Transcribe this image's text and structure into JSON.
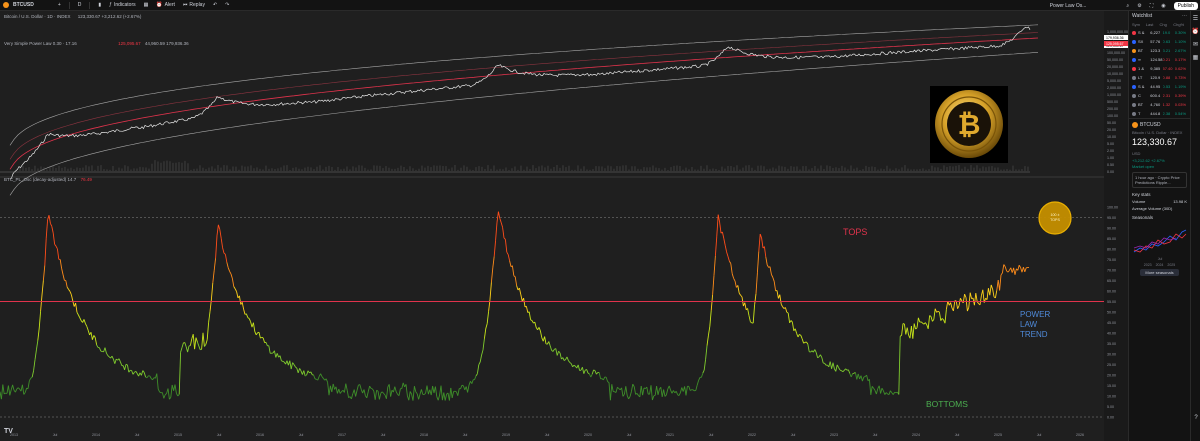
{
  "topbar": {
    "symbol": "BTCUSD",
    "interval": "D",
    "indicators_label": "Indicators",
    "alert_label": "Alert",
    "replay_label": "Replay",
    "layout_name": "Power Law Os...",
    "publish_label": "Publish"
  },
  "legend": {
    "main": "Bitcoin / U.S. Dollar · 1D · INDEX",
    "main_values": "123,330.67 +3,212.62 (+2.67%)",
    "power_law": "Very Simple Power Law 0.30 · 17.16",
    "power_law_val1": "125,095.67",
    "power_law_val2": "44,960.59  179,936.36",
    "oscillator": "BTC_PL_Osc (decay-adjusted) 14.7",
    "oscillator_val": "76.49"
  },
  "price_axis": [
    "1,000,000.00",
    "500,000.00",
    "200,000.00",
    "100,000.00",
    "50,000.00",
    "20,000.00",
    "10,000.00",
    "5,000.00",
    "2,000.00",
    "1,000.00",
    "500.00",
    "200.00",
    "100.00",
    "50.00",
    "20.00",
    "10.00",
    "5.00",
    "2.00",
    "1.00",
    "0.50",
    "0.00"
  ],
  "price_tags": [
    "123,330.67",
    "125,095.67",
    "179,936.36"
  ],
  "osc_axis": [
    "100.00",
    "95.00",
    "90.00",
    "85.00",
    "80.00",
    "75.00",
    "70.00",
    "65.00",
    "60.00",
    "55.00",
    "50.00",
    "45.00",
    "40.00",
    "35.00",
    "30.00",
    "25.00",
    "20.00",
    "15.00",
    "10.00",
    "5.00",
    "0.00"
  ],
  "time_axis": [
    "2013",
    "Jul",
    "2014",
    "Jul",
    "2015",
    "Jul",
    "2016",
    "Jul",
    "2017",
    "Jul",
    "2018",
    "Jul",
    "2019",
    "Jul",
    "2020",
    "Jul",
    "2021",
    "Jul",
    "2022",
    "Jul",
    "2023",
    "Jul",
    "2024",
    "Jul",
    "2025",
    "Jul",
    "2026"
  ],
  "annotations": {
    "tops": "TOPS",
    "bottoms": "BOTTOMS",
    "power_law_trend": [
      "POWER",
      "LAW",
      "TREND"
    ],
    "circle_text": [
      "100 ±",
      "TOPS"
    ]
  },
  "watchlist": {
    "title": "Watchlist",
    "cols": [
      "Sym",
      "Last",
      "Chg",
      "Chg%"
    ],
    "rows": [
      {
        "sym": "S &",
        "last": "6,227",
        "chg": "19.0",
        "pct": "0.30%",
        "color": "#f23645",
        "dir": "pos"
      },
      {
        "sym": "SX",
        "last": "57.76",
        "chg": "0.63",
        "pct": "1.10%",
        "color": "#2962ff",
        "dir": "pos"
      },
      {
        "sym": "BT",
        "last": "123.3",
        "chg": "3.21",
        "pct": "2.67%",
        "color": "#f7931a",
        "dir": "pos"
      },
      {
        "sym": "∞",
        "last": "124.58",
        "chg": "0.21",
        "pct": "0.17%",
        "color": "#2962ff",
        "dir": "neg"
      },
      {
        "sym": "1 &",
        "last": "9,385",
        "chg": "57.40",
        "pct": "0.62%",
        "color": "#f23645",
        "dir": "neg"
      },
      {
        "sym": "LT",
        "last": "120.9",
        "chg": "0.88",
        "pct": "0.73%",
        "color": "#787b86",
        "dir": "neg"
      },
      {
        "sym": "S &",
        "last": "44.95",
        "chg": "0.53",
        "pct": "1.19%",
        "color": "#2962ff",
        "dir": "pos"
      },
      {
        "sym": "C",
        "last": "600.4",
        "chg": "2.31",
        "pct": "0.39%",
        "color": "#787b86",
        "dir": "neg"
      },
      {
        "sym": "BT",
        "last": "4,760",
        "chg": "1.32",
        "pct": "0.03%",
        "color": "#787b86",
        "dir": "neg"
      },
      {
        "sym": "T",
        "last": "444.8",
        "chg": "2.38",
        "pct": "0.54%",
        "color": "#787b86",
        "dir": "pos"
      }
    ]
  },
  "details": {
    "symbol": "BTCUSD",
    "name": "Bitcoin / U.S. Dollar · INDEX",
    "price": "123,330.67",
    "currency": "USD",
    "change": "+3,212.62  +2.67%",
    "status": "Market open",
    "news": "1 hour ago · Crypto Price Predictions Ripple...",
    "key_stats": "Key stats",
    "volume_label": "Volume",
    "volume_value": "13.98 K",
    "avg_volume_label": "Average Volume (30D)",
    "seasonals_label": "Seasonals",
    "seasonals_month": "Jul",
    "seasonals_years": [
      "2023",
      "2024",
      "2025"
    ],
    "more_seasonals": "More seasonals"
  },
  "colors": {
    "bg": "#1f1f1f",
    "price": "#e6e6e6",
    "power_law_mid": "#e0334c",
    "bands": "#c8c8c8",
    "trend_line": "#e0334c",
    "tops_text": "#e0334c",
    "bottoms_text": "#4caf50",
    "trend_text": "#4f8ad9",
    "circle": "#f5b800"
  }
}
